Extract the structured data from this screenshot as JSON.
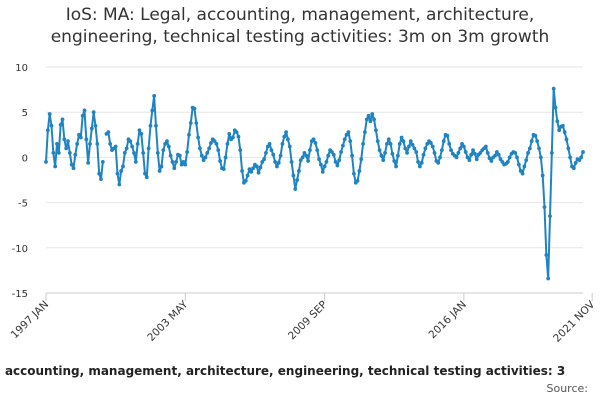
{
  "chart_data": {
    "type": "line",
    "title_lines": [
      "IoS: MA: Legal, accounting, management, architecture,",
      "engineering, technical testing activities: 3m on 3m growth"
    ],
    "ylim": [
      -15,
      10
    ],
    "yticks": [
      10,
      5,
      0,
      -5,
      -10,
      -15
    ],
    "x_start_year": 1997,
    "x_start_month": 1,
    "xticks": [
      "1997 JAN",
      "2003 MAY",
      "2009 SEP",
      "2016 JAN",
      "2021 NOV"
    ],
    "xtick_indices": [
      0,
      76,
      152,
      228,
      298
    ],
    "series": [
      {
        "name": "IoS: MA: Legal, accounting, management, architecture, engineering, technical testing activities: 3m on 3m growth",
        "color": "#1f84c1",
        "values": [
          -0.5,
          3.0,
          4.8,
          3.5,
          0.5,
          -1.0,
          1.5,
          0.5,
          3.6,
          4.2,
          2.0,
          1.0,
          1.8,
          0.5,
          -0.8,
          -1.2,
          0.3,
          1.5,
          2.5,
          2.2,
          4.6,
          5.2,
          2.0,
          -0.6,
          1.5,
          3.2,
          5.0,
          3.5,
          1.5,
          -1.8,
          -2.4,
          -0.5,
          null,
          2.6,
          2.8,
          1.5,
          0.8,
          1.0,
          1.2,
          -1.8,
          -3.0,
          -1.5,
          -1.0,
          0.5,
          1.0,
          2.0,
          1.8,
          1.2,
          0.5,
          -0.5,
          1.5,
          3.0,
          2.6,
          0.5,
          -1.8,
          -2.2,
          1.0,
          3.5,
          5.2,
          6.8,
          3.5,
          0.5,
          -1.5,
          -1.0,
          0.8,
          1.5,
          1.8,
          1.2,
          0.2,
          -0.5,
          -1.2,
          -0.5,
          0.3,
          0.2,
          -0.8,
          -0.5,
          -0.8,
          0.6,
          2.5,
          3.8,
          5.5,
          5.4,
          3.8,
          2.2,
          1.0,
          0.2,
          -0.3,
          0.0,
          0.5,
          1.0,
          1.6,
          2.0,
          1.8,
          1.5,
          0.8,
          -0.4,
          -1.2,
          -1.3,
          0.0,
          1.5,
          2.6,
          2.0,
          2.2,
          3.0,
          2.8,
          2.3,
          0.8,
          -1.5,
          -2.8,
          -2.6,
          -2.0,
          -1.3,
          -1.6,
          -1.2,
          -0.8,
          -1.0,
          -1.7,
          -1.1,
          -0.5,
          -0.2,
          0.5,
          1.2,
          1.5,
          0.8,
          0.3,
          -0.5,
          -1.0,
          -0.6,
          0.2,
          1.5,
          2.3,
          2.8,
          2.0,
          1.2,
          -0.5,
          -2.0,
          -3.5,
          -2.5,
          -1.5,
          -0.3,
          0.0,
          0.5,
          0.2,
          -0.4,
          0.8,
          1.8,
          2.0,
          1.6,
          0.8,
          -0.2,
          -0.8,
          -1.6,
          -1.0,
          -0.5,
          0.2,
          0.8,
          0.6,
          0.3,
          -0.5,
          -0.9,
          -0.3,
          0.6,
          1.3,
          2.0,
          2.5,
          2.8,
          1.8,
          0.2,
          -1.8,
          -2.8,
          -2.6,
          -1.5,
          -0.2,
          1.5,
          2.8,
          4.2,
          4.6,
          4.0,
          4.8,
          4.2,
          3.0,
          1.8,
          0.8,
          0.2,
          -0.3,
          0.5,
          1.5,
          2.0,
          1.5,
          0.4,
          -0.4,
          -1.0,
          0.2,
          1.5,
          2.2,
          1.8,
          1.0,
          0.5,
          1.2,
          1.8,
          1.4,
          1.0,
          0.6,
          -0.5,
          -1.0,
          -0.6,
          0.3,
          1.0,
          1.5,
          1.8,
          1.6,
          1.2,
          0.5,
          -0.4,
          -0.6,
          0.0,
          0.8,
          1.8,
          2.5,
          2.4,
          1.5,
          0.8,
          0.4,
          0.2,
          0.0,
          0.5,
          1.0,
          1.5,
          1.2,
          0.6,
          0.0,
          -0.3,
          0.3,
          0.8,
          0.4,
          -0.2,
          0.3,
          0.5,
          0.8,
          1.0,
          1.2,
          0.5,
          -0.1,
          -0.4,
          0.0,
          0.2,
          0.6,
          0.3,
          -0.2,
          -0.5,
          -0.8,
          -0.7,
          -0.5,
          0.0,
          0.4,
          0.6,
          0.5,
          0.0,
          -0.8,
          -1.5,
          -1.8,
          -1.0,
          -0.3,
          0.5,
          1.0,
          1.8,
          2.5,
          2.4,
          1.8,
          1.0,
          0.0,
          -2.0,
          -5.5,
          -10.8,
          -13.4,
          -6.5,
          0.5,
          7.6,
          5.5,
          4.0,
          3.0,
          3.4,
          3.5,
          2.8,
          2.0,
          1.0,
          0.0,
          -1.0,
          -1.2,
          -0.6,
          -0.2,
          -0.3,
          0.0,
          0.6
        ]
      }
    ],
    "legend": {
      "visible_text": "al, accounting, management, architecture, engineering, technical testing activities: 3"
    },
    "source_label": "Source:"
  }
}
